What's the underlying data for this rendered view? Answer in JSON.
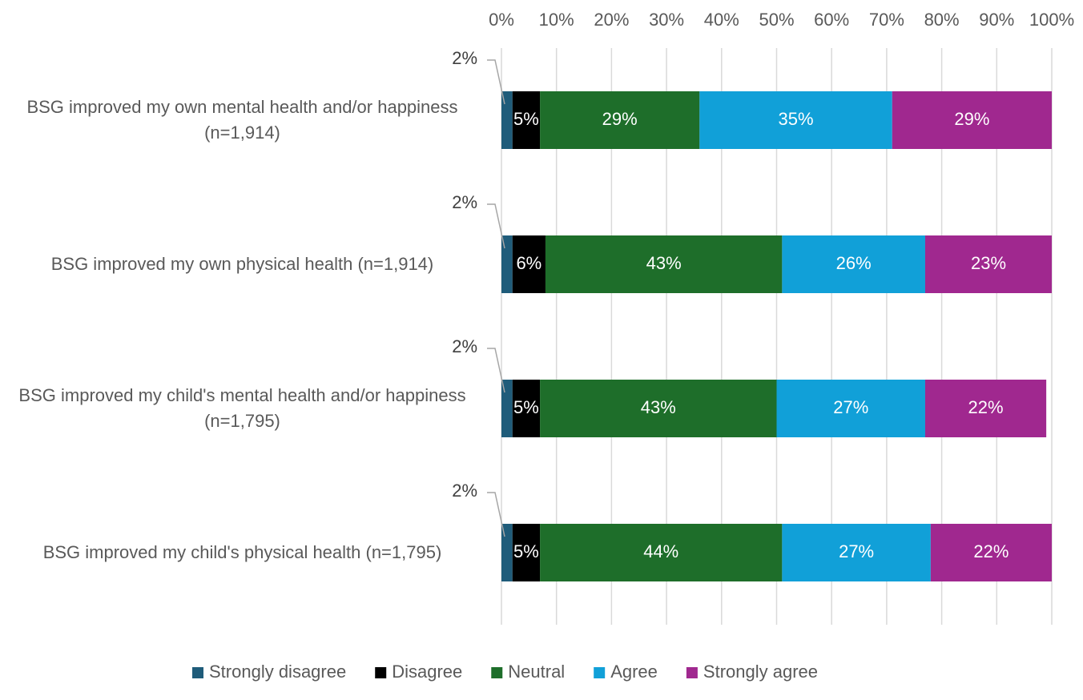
{
  "chart_data": {
    "type": "stacked-bar-horizontal",
    "categories": [
      "BSG improved my own mental health and/or happiness (n=1,914)",
      "BSG improved my own physical health (n=1,914)",
      "BSG improved my child's mental health and/or happiness (n=1,795)",
      "BSG improved my child's physical health (n=1,795)"
    ],
    "series": [
      {
        "name": "Strongly disagree",
        "color": "#1f5c7a",
        "values": [
          2,
          2,
          2,
          2
        ],
        "value_labels": [
          "2%",
          "2%",
          "2%",
          "2%"
        ]
      },
      {
        "name": "Disagree",
        "color": "#000000",
        "values": [
          5,
          6,
          5,
          5
        ],
        "value_labels": [
          "5%",
          "6%",
          "5%",
          "5%"
        ]
      },
      {
        "name": "Neutral",
        "color": "#1e6e2a",
        "values": [
          29,
          43,
          43,
          44
        ],
        "value_labels": [
          "29%",
          "43%",
          "43%",
          "44%"
        ]
      },
      {
        "name": "Agree",
        "color": "#11a0d8",
        "values": [
          35,
          26,
          27,
          27
        ],
        "value_labels": [
          "35%",
          "26%",
          "27%",
          "27%"
        ]
      },
      {
        "name": "Strongly agree",
        "color": "#a0288f",
        "values": [
          29,
          23,
          22,
          22
        ],
        "value_labels": [
          "29%",
          "23%",
          "22%",
          "22%"
        ]
      }
    ],
    "xlim": [
      0,
      100
    ],
    "xticks": [
      {
        "value": 0,
        "label": "0%"
      },
      {
        "value": 10,
        "label": "10%"
      },
      {
        "value": 20,
        "label": "20%"
      },
      {
        "value": 30,
        "label": "30%"
      },
      {
        "value": 40,
        "label": "40%"
      },
      {
        "value": 50,
        "label": "50%"
      },
      {
        "value": 60,
        "label": "60%"
      },
      {
        "value": 70,
        "label": "70%"
      },
      {
        "value": 80,
        "label": "80%"
      },
      {
        "value": 90,
        "label": "90%"
      },
      {
        "value": 100,
        "label": "100%"
      }
    ],
    "grid": true,
    "legend": "bottom"
  }
}
